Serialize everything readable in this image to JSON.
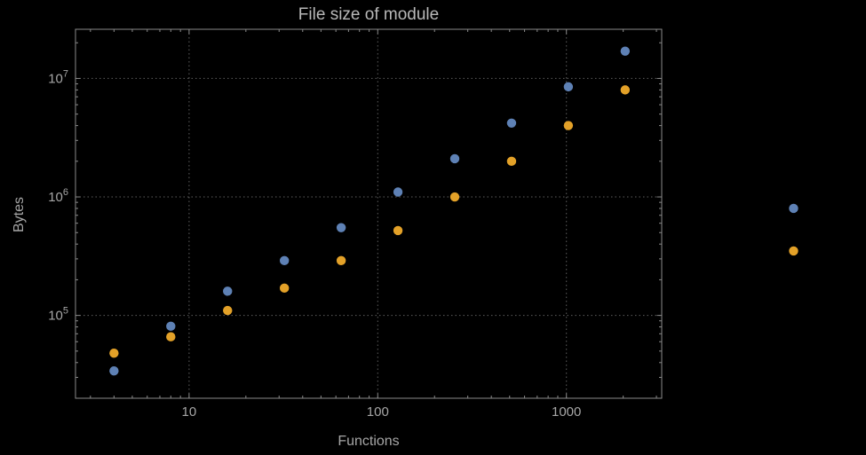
{
  "background": "#000000",
  "chart_data": {
    "type": "scatter",
    "title": "File size of module",
    "xlabel": "Functions",
    "ylabel": "Bytes",
    "x_scale": "log",
    "y_scale": "log",
    "xlim": [
      2.5,
      3200
    ],
    "ylim": [
      20000,
      26000000
    ],
    "grid": "dotted lines at powers of 10, both axes",
    "legend": "none",
    "x_ticks": [
      10,
      100,
      1000
    ],
    "y_ticks": [
      {
        "base": "10",
        "exp": "5",
        "value": 100000
      },
      {
        "base": "10",
        "exp": "6",
        "value": 1000000
      },
      {
        "base": "10",
        "exp": "7",
        "value": 10000000
      }
    ],
    "series": [
      {
        "name": "blue-series",
        "color": "#5e81b5",
        "points": [
          [
            4,
            34000
          ],
          [
            8,
            81000
          ],
          [
            16,
            160000
          ],
          [
            32,
            290000
          ],
          [
            64,
            550000
          ],
          [
            128,
            1100000
          ],
          [
            256,
            2100000
          ],
          [
            512,
            4200000
          ],
          [
            1024,
            8500000
          ],
          [
            2048,
            17000000
          ],
          [
            16000,
            800000
          ]
        ]
      },
      {
        "name": "orange-series",
        "color": "#e3a128",
        "points": [
          [
            4,
            48000
          ],
          [
            8,
            66000
          ],
          [
            16,
            110000
          ],
          [
            32,
            170000
          ],
          [
            64,
            290000
          ],
          [
            128,
            520000
          ],
          [
            256,
            1000000
          ],
          [
            512,
            2000000
          ],
          [
            1024,
            4000000
          ],
          [
            2048,
            8000000
          ],
          [
            16000,
            350000
          ]
        ]
      }
    ]
  }
}
